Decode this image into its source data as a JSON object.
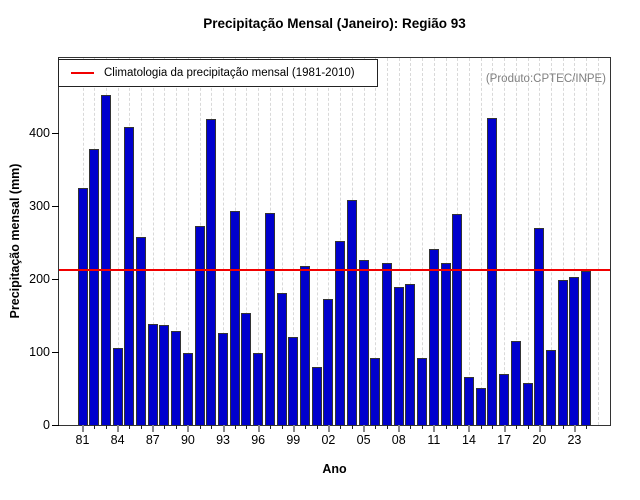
{
  "chart_data": {
    "type": "bar",
    "title": "Precipitação Mensal (Janeiro): Região 93",
    "xlabel": "Ano",
    "ylabel": "Precipitação mensal (mm)",
    "legend_label": "Climatologia da precipitação mensal (1981-2010)",
    "annotation": "(Produto:CPTEC/INPE)",
    "ylim": [
      0,
      502
    ],
    "y_ticks": [
      0,
      100,
      200,
      300,
      400
    ],
    "x_tick_labels": [
      "81",
      "84",
      "87",
      "90",
      "93",
      "96",
      "99",
      "02",
      "05",
      "08",
      "11",
      "14",
      "17",
      "20",
      "23"
    ],
    "grid": "vertical-dashed",
    "legend_position": "top-left",
    "years": [
      1981,
      1982,
      1983,
      1984,
      1985,
      1986,
      1987,
      1988,
      1989,
      1990,
      1991,
      1992,
      1993,
      1994,
      1995,
      1996,
      1997,
      1998,
      1999,
      2000,
      2001,
      2002,
      2003,
      2004,
      2005,
      2006,
      2007,
      2008,
      2009,
      2010,
      2011,
      2012,
      2013,
      2014,
      2015,
      2016,
      2017,
      2018,
      2019,
      2020,
      2021,
      2022,
      2023,
      2024
    ],
    "values": [
      324,
      377,
      451,
      106,
      408,
      257,
      138,
      137,
      128,
      99,
      272,
      419,
      126,
      293,
      153,
      98,
      290,
      180,
      121,
      217,
      80,
      173,
      252,
      308,
      226,
      91,
      222,
      189,
      193,
      91,
      241,
      222,
      289,
      66,
      50,
      420,
      70,
      115,
      58,
      270,
      103,
      198,
      203,
      211
    ],
    "climatology_value": 214,
    "colors": {
      "bar": "#0000cd",
      "bar_border": "#333333",
      "climatology": "#f10000",
      "grid": "#d9d9d9",
      "annotation": "#808080"
    }
  }
}
